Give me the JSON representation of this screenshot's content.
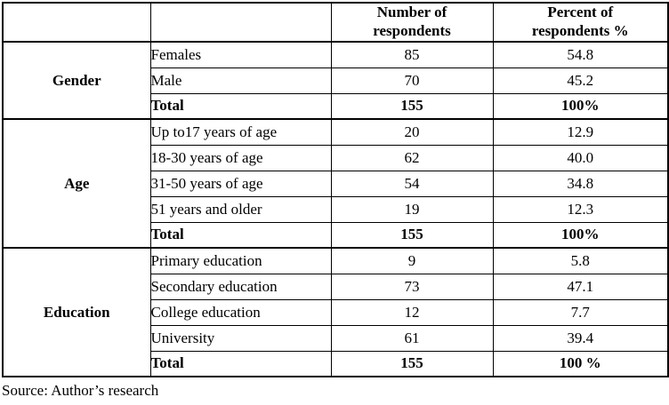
{
  "table": {
    "header": {
      "category_label": "",
      "group_label": "",
      "count_label": "Number of respondents",
      "percent_label": "Percent of respondents %"
    },
    "sections": [
      {
        "category": "Gender",
        "rows": [
          {
            "label": "Females",
            "count": "85",
            "percent": "54.8",
            "bold": false
          },
          {
            "label": "Male",
            "count": "70",
            "percent": "45.2",
            "bold": false
          },
          {
            "label": "Total",
            "count": "155",
            "percent": "100%",
            "bold": true
          }
        ]
      },
      {
        "category": "Age",
        "rows": [
          {
            "label": "Up to17 years of age",
            "count": "20",
            "percent": "12.9",
            "bold": false
          },
          {
            "label": "18-30 years of age",
            "count": "62",
            "percent": "40.0",
            "bold": false
          },
          {
            "label": "31-50 years of age",
            "count": "54",
            "percent": "34.8",
            "bold": false
          },
          {
            "label": "51 years and older",
            "count": "19",
            "percent": "12.3",
            "bold": false
          },
          {
            "label": "Total",
            "count": "155",
            "percent": "100%",
            "bold": true
          }
        ]
      },
      {
        "category": "Education",
        "rows": [
          {
            "label": "Primary education",
            "count": "9",
            "percent": "5.8",
            "bold": false
          },
          {
            "label": "Secondary education",
            "count": "73",
            "percent": "47.1",
            "bold": false
          },
          {
            "label": "College education",
            "count": "12",
            "percent": "7.7",
            "bold": false
          },
          {
            "label": "University",
            "count": "61",
            "percent": "39.4",
            "bold": false
          },
          {
            "label": "Total",
            "count": "155",
            "percent": "100 %",
            "bold": true
          }
        ]
      }
    ]
  },
  "source_note": "Source: Author’s research",
  "colors": {
    "border": "#000000",
    "text": "#000000",
    "background": "#ffffff"
  }
}
